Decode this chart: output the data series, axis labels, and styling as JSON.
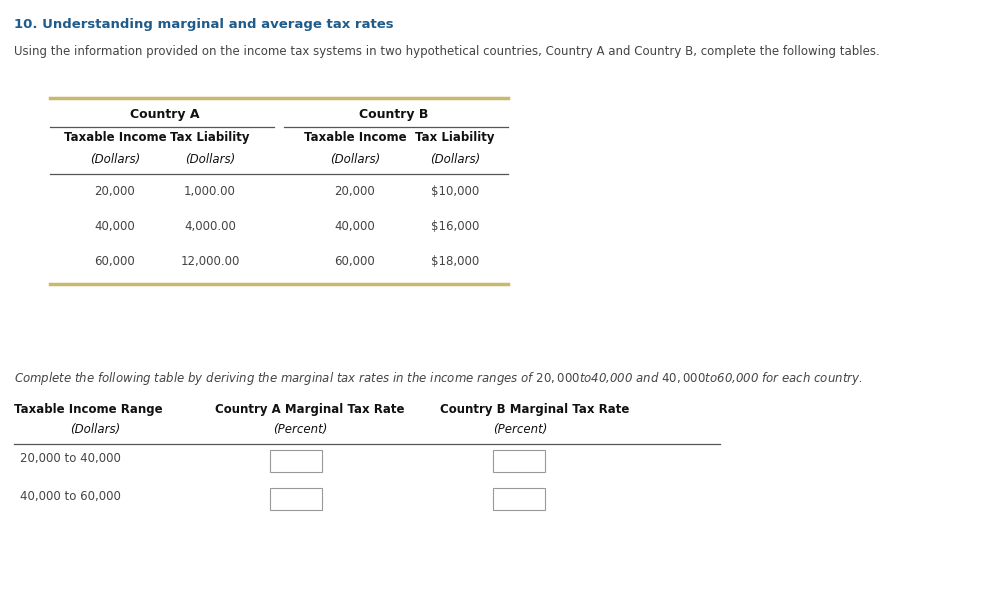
{
  "title": "10. Understanding marginal and average tax rates",
  "title_color": "#1F5C8B",
  "intro_text": "Using the information provided on the income tax systems in two hypothetical countries, Country A and Country B, complete the following tables.",
  "table1": {
    "country_a_header": "Country A",
    "country_b_header": "Country B",
    "col_headers": [
      "Taxable Income",
      "Tax Liability",
      "Taxable Income",
      "Tax Liability"
    ],
    "col_subheaders": [
      "(Dollars)",
      "(Dollars)",
      "(Dollars)",
      "(Dollars)"
    ],
    "rows": [
      [
        "20,000",
        "1,000.00",
        "20,000",
        "$10,000"
      ],
      [
        "40,000",
        "4,000.00",
        "40,000",
        "$16,000"
      ],
      [
        "60,000",
        "12,000.00",
        "60,000",
        "$18,000"
      ]
    ],
    "gold_color": "#C9B96A",
    "line_color": "#555555"
  },
  "italic_text": "Complete the following table by deriving the marginal tax rates in the income ranges of $20,000 to $40,000 and $40,000 to $60,000 for each country.",
  "table2": {
    "col_headers": [
      "Taxable Income Range",
      "Country A Marginal Tax Rate",
      "Country B Marginal Tax Rate"
    ],
    "col_subheaders": [
      "(Dollars)",
      "(Percent)",
      "(Percent)"
    ],
    "rows": [
      [
        "20,000 to 40,000",
        "",
        ""
      ],
      [
        "40,000 to 60,000",
        "",
        ""
      ]
    ],
    "line_color": "#555555"
  },
  "bg_color": "#FFFFFF",
  "text_color": "#444444",
  "header_color": "#111111"
}
